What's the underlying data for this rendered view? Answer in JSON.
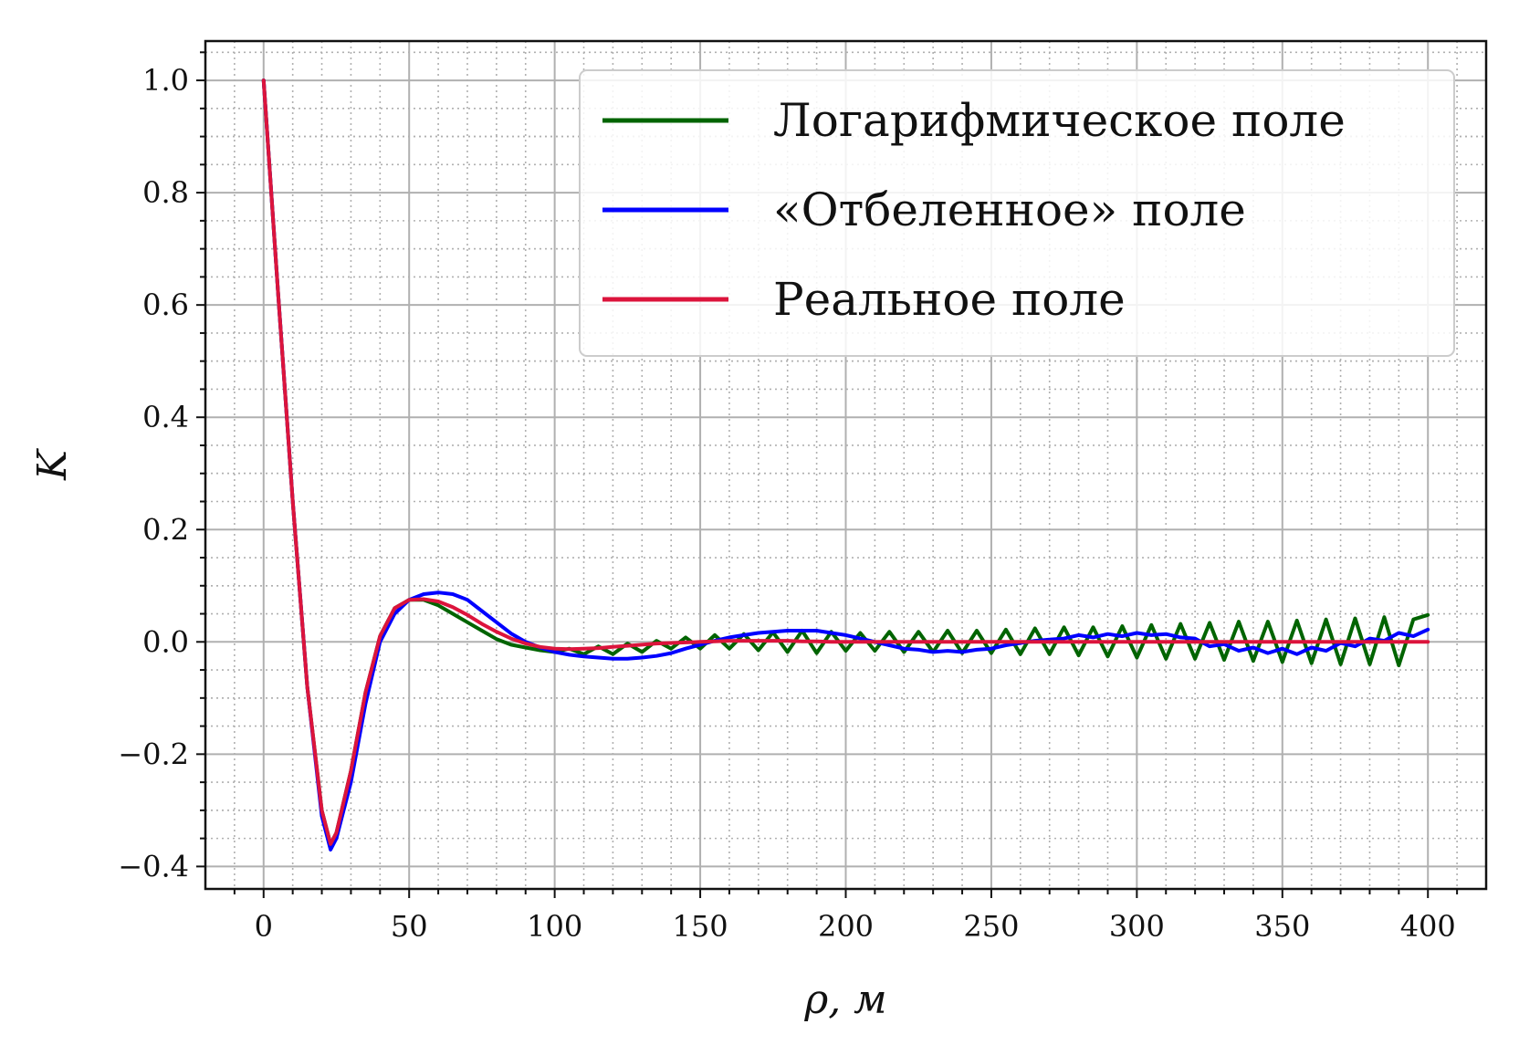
{
  "chart_data": {
    "type": "line",
    "xlabel": "ρ, м",
    "ylabel": "K",
    "xlim": [
      -20,
      420
    ],
    "ylim": [
      -0.44,
      1.07
    ],
    "x_ticks": [
      0,
      50,
      100,
      150,
      200,
      250,
      300,
      350,
      400
    ],
    "x_tick_labels": [
      "0",
      "50",
      "100",
      "150",
      "200",
      "250",
      "300",
      "350",
      "400"
    ],
    "y_ticks": [
      -0.4,
      -0.2,
      0.0,
      0.2,
      0.4,
      0.6,
      0.8,
      1.0
    ],
    "y_tick_labels": [
      "−0.4",
      "−0.2",
      "0.0",
      "0.2",
      "0.4",
      "0.6",
      "0.8",
      "1.0"
    ],
    "grid": {
      "major": true,
      "minor": true,
      "minor_style": "dotted"
    },
    "legend_position": "upper-right",
    "colors": {
      "logarithmic": "#006400",
      "whitened": "#0000ff",
      "real": "#dc143c",
      "grid": "#b0b0b0"
    },
    "series": [
      {
        "name": "Логарифмическое поле",
        "color": "#006400",
        "x": [
          0,
          5,
          10,
          15,
          20,
          23,
          25,
          30,
          35,
          40,
          45,
          50,
          55,
          60,
          65,
          70,
          75,
          80,
          85,
          90,
          95,
          100,
          105,
          110,
          115,
          120,
          125,
          130,
          135,
          140,
          145,
          150,
          155,
          160,
          165,
          170,
          175,
          180,
          185,
          190,
          195,
          200,
          205,
          210,
          215,
          220,
          225,
          230,
          235,
          240,
          245,
          250,
          255,
          260,
          265,
          270,
          275,
          280,
          285,
          290,
          295,
          300,
          305,
          310,
          315,
          320,
          325,
          330,
          335,
          340,
          345,
          350,
          355,
          360,
          365,
          370,
          375,
          380,
          385,
          390,
          395,
          400
        ],
        "y": [
          1.0,
          0.62,
          0.25,
          -0.08,
          -0.3,
          -0.36,
          -0.34,
          -0.23,
          -0.09,
          0.01,
          0.06,
          0.075,
          0.075,
          0.065,
          0.05,
          0.035,
          0.02,
          0.005,
          -0.005,
          -0.01,
          -0.015,
          -0.018,
          -0.012,
          -0.022,
          -0.008,
          -0.022,
          -0.003,
          -0.018,
          0.002,
          -0.012,
          0.008,
          -0.012,
          0.012,
          -0.012,
          0.014,
          -0.015,
          0.017,
          -0.018,
          0.02,
          -0.02,
          0.018,
          -0.016,
          0.016,
          -0.016,
          0.018,
          -0.018,
          0.018,
          -0.018,
          0.02,
          -0.02,
          0.02,
          -0.02,
          0.022,
          -0.022,
          0.024,
          -0.022,
          0.026,
          -0.024,
          0.026,
          -0.026,
          0.028,
          -0.028,
          0.03,
          -0.03,
          0.032,
          -0.03,
          0.034,
          -0.032,
          0.036,
          -0.034,
          0.036,
          -0.036,
          0.038,
          -0.038,
          0.04,
          -0.04,
          0.042,
          -0.04,
          0.044,
          -0.042,
          0.04,
          0.048
        ]
      },
      {
        "name": "«Отбеленное» поле",
        "color": "#0000ff",
        "x": [
          0,
          5,
          10,
          15,
          20,
          23,
          25,
          30,
          35,
          40,
          45,
          50,
          55,
          60,
          65,
          70,
          75,
          80,
          85,
          90,
          95,
          100,
          105,
          110,
          115,
          120,
          125,
          130,
          135,
          140,
          145,
          150,
          155,
          160,
          165,
          170,
          175,
          180,
          185,
          190,
          195,
          200,
          205,
          210,
          215,
          220,
          225,
          230,
          235,
          240,
          245,
          250,
          255,
          260,
          265,
          270,
          275,
          280,
          285,
          290,
          295,
          300,
          305,
          310,
          315,
          320,
          325,
          330,
          335,
          340,
          345,
          350,
          355,
          360,
          365,
          370,
          375,
          380,
          385,
          390,
          395,
          400
        ],
        "y": [
          1.0,
          0.62,
          0.25,
          -0.08,
          -0.31,
          -0.37,
          -0.35,
          -0.25,
          -0.11,
          0.0,
          0.05,
          0.075,
          0.085,
          0.088,
          0.085,
          0.075,
          0.055,
          0.035,
          0.015,
          0.0,
          -0.01,
          -0.018,
          -0.023,
          -0.026,
          -0.028,
          -0.03,
          -0.03,
          -0.028,
          -0.025,
          -0.02,
          -0.012,
          -0.005,
          0.002,
          0.008,
          0.012,
          0.016,
          0.018,
          0.02,
          0.02,
          0.02,
          0.016,
          0.012,
          0.006,
          0.0,
          -0.006,
          -0.012,
          -0.014,
          -0.018,
          -0.016,
          -0.018,
          -0.014,
          -0.012,
          -0.006,
          -0.002,
          0.002,
          0.004,
          0.006,
          0.012,
          0.008,
          0.014,
          0.01,
          0.016,
          0.012,
          0.014,
          0.008,
          0.006,
          -0.008,
          -0.004,
          -0.016,
          -0.01,
          -0.02,
          -0.012,
          -0.022,
          -0.01,
          -0.016,
          -0.002,
          -0.008,
          0.006,
          0.002,
          0.016,
          0.01,
          0.022
        ]
      },
      {
        "name": "Реальное поле",
        "color": "#dc143c",
        "x": [
          0,
          5,
          10,
          15,
          20,
          23,
          25,
          30,
          35,
          40,
          45,
          50,
          55,
          60,
          65,
          70,
          75,
          80,
          85,
          90,
          95,
          100,
          105,
          110,
          115,
          120,
          125,
          130,
          135,
          140,
          145,
          150,
          155,
          160,
          165,
          170,
          175,
          180,
          185,
          190,
          195,
          200,
          205,
          210,
          215,
          220,
          225,
          230,
          235,
          240,
          245,
          250,
          255,
          260,
          265,
          270,
          275,
          280,
          285,
          290,
          295,
          300,
          305,
          310,
          315,
          320,
          325,
          330,
          335,
          340,
          345,
          350,
          355,
          360,
          365,
          370,
          375,
          380,
          385,
          390,
          395,
          400
        ],
        "y": [
          1.0,
          0.62,
          0.25,
          -0.08,
          -0.3,
          -0.36,
          -0.34,
          -0.23,
          -0.09,
          0.01,
          0.06,
          0.075,
          0.076,
          0.072,
          0.062,
          0.048,
          0.032,
          0.018,
          0.006,
          -0.003,
          -0.009,
          -0.012,
          -0.013,
          -0.012,
          -0.011,
          -0.009,
          -0.007,
          -0.005,
          -0.003,
          -0.002,
          -0.001,
          0.0,
          0.001,
          0.002,
          0.002,
          0.002,
          0.002,
          0.002,
          0.001,
          0.001,
          0.0,
          0.0,
          0.0,
          0.0,
          0.0,
          0.0,
          0.0,
          0.0,
          0.0,
          0.0,
          0.0,
          0.0,
          0.0,
          0.0,
          0.0,
          0.0,
          0.0,
          0.0,
          0.0,
          0.0,
          0.0,
          0.0,
          0.0,
          0.0,
          0.0,
          0.0,
          0.0,
          0.0,
          0.0,
          0.0,
          0.0,
          0.0,
          0.0,
          0.0,
          0.0,
          0.0,
          0.0,
          0.0,
          0.0,
          0.0,
          0.0,
          0.0
        ]
      }
    ]
  }
}
